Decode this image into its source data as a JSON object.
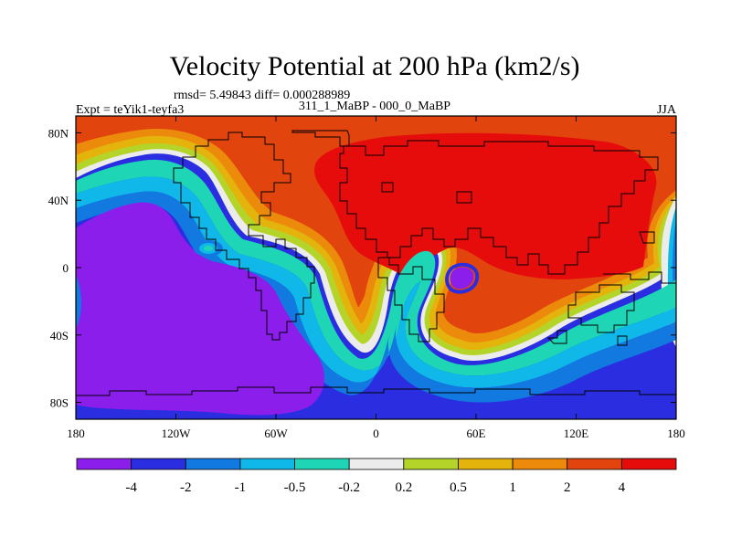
{
  "chart_data": {
    "type": "contour-map",
    "title": "Velocity Potential at 200 hPa (km2/s)",
    "stats": "rmsd= 5.49843 diff= 0.000288989",
    "left_label": "Expt = teYik1-teyfa3",
    "center_label": "311_1_MaBP - 000_0_MaBP",
    "right_label": "JJA",
    "xlim": [
      -180,
      180
    ],
    "ylim": [
      -90,
      90
    ],
    "x_ticks": [
      {
        "value": -180,
        "label": "180"
      },
      {
        "value": -120,
        "label": "120W"
      },
      {
        "value": -60,
        "label": "60W"
      },
      {
        "value": 0,
        "label": "0"
      },
      {
        "value": 60,
        "label": "60E"
      },
      {
        "value": 120,
        "label": "120E"
      },
      {
        "value": 180,
        "label": "180"
      }
    ],
    "y_ticks": [
      {
        "value": 80,
        "label": "80N"
      },
      {
        "value": 40,
        "label": "40N"
      },
      {
        "value": 0,
        "label": "0"
      },
      {
        "value": -40,
        "label": "40S"
      },
      {
        "value": -80,
        "label": "80S"
      }
    ],
    "colorbar": {
      "levels": [
        "-4",
        "-2",
        "-1",
        "-0.5",
        "-0.2",
        "0.2",
        "0.5",
        "1",
        "2",
        "4"
      ],
      "colors": [
        "#8c1eec",
        "#2a2ee0",
        "#1279e0",
        "#0fb8e8",
        "#1ed6b6",
        "#ececec",
        "#b4d42a",
        "#e4b40c",
        "#ec8a0c",
        "#e2440e",
        "#e60c0c"
      ]
    }
  }
}
